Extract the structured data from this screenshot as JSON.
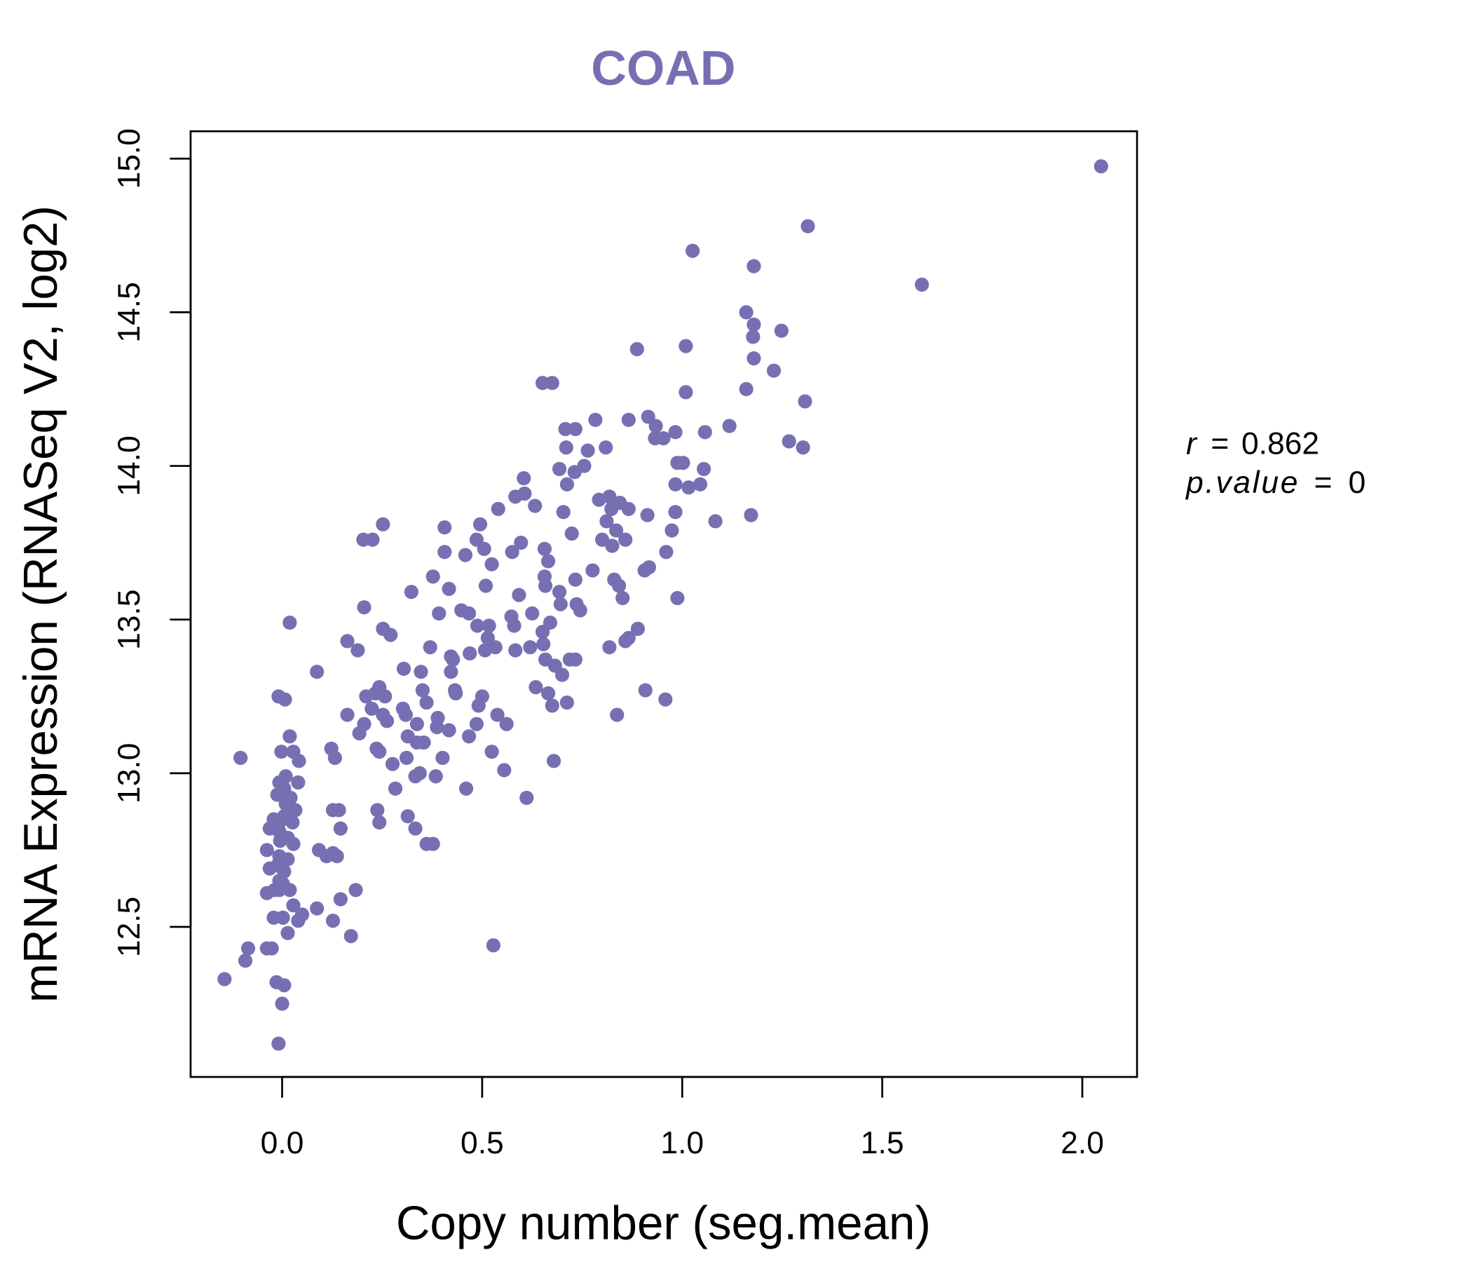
{
  "chart_data": {
    "type": "scatter",
    "title": "COAD",
    "xlabel": "Copy number (seg.mean)",
    "ylabel": "mRNA Expression (RNASeq V2, log2)",
    "xlim": [
      -0.23,
      2.14
    ],
    "ylim": [
      12.08,
      15.09
    ],
    "xticks": [
      "0.0",
      "0.5",
      "1.0",
      "1.5",
      "2.0"
    ],
    "xtick_values": [
      0,
      0.5,
      1.0,
      1.5,
      2.0
    ],
    "yticks": [
      "12.5",
      "13.0",
      "13.5",
      "14.0",
      "14.5",
      "15.0"
    ],
    "ytick_values": [
      12.5,
      13.0,
      13.5,
      14.0,
      14.5,
      15.0
    ],
    "grid": false,
    "colors": {
      "point": "#7670b3",
      "title": "#7670b3",
      "axis": "#000000"
    },
    "annotation": {
      "r_label": "r",
      "r_value": "0.862",
      "p_label": "p.value",
      "p_value": "0",
      "eq": "="
    },
    "points": [
      [
        2.047,
        14.975
      ],
      [
        1.314,
        14.78
      ],
      [
        1.026,
        14.7
      ],
      [
        1.179,
        14.65
      ],
      [
        1.599,
        14.59
      ],
      [
        1.16,
        14.5
      ],
      [
        1.179,
        14.46
      ],
      [
        1.177,
        14.42
      ],
      [
        1.248,
        14.44
      ],
      [
        1.009,
        14.39
      ],
      [
        0.887,
        14.38
      ],
      [
        1.179,
        14.35
      ],
      [
        1.229,
        14.31
      ],
      [
        0.651,
        14.27
      ],
      [
        0.675,
        14.27
      ],
      [
        1.009,
        14.24
      ],
      [
        1.16,
        14.25
      ],
      [
        1.307,
        14.21
      ],
      [
        0.783,
        14.15
      ],
      [
        0.866,
        14.15
      ],
      [
        0.915,
        14.16
      ],
      [
        0.934,
        14.13
      ],
      [
        1.118,
        14.13
      ],
      [
        0.708,
        14.12
      ],
      [
        0.733,
        14.12
      ],
      [
        0.983,
        14.11
      ],
      [
        1.057,
        14.11
      ],
      [
        0.932,
        14.09
      ],
      [
        0.953,
        14.09
      ],
      [
        1.267,
        14.08
      ],
      [
        1.302,
        14.06
      ],
      [
        0.71,
        14.06
      ],
      [
        0.764,
        14.05
      ],
      [
        0.809,
        14.06
      ],
      [
        0.988,
        14.01
      ],
      [
        1.002,
        14.01
      ],
      [
        1.054,
        13.99
      ],
      [
        0.693,
        13.99
      ],
      [
        0.731,
        13.98
      ],
      [
        0.755,
        14.0
      ],
      [
        0.604,
        13.96
      ],
      [
        0.712,
        13.94
      ],
      [
        0.983,
        13.94
      ],
      [
        1.016,
        13.93
      ],
      [
        1.045,
        13.94
      ],
      [
        0.583,
        13.9
      ],
      [
        0.606,
        13.91
      ],
      [
        0.632,
        13.87
      ],
      [
        0.54,
        13.86
      ],
      [
        0.792,
        13.89
      ],
      [
        0.818,
        13.9
      ],
      [
        0.844,
        13.88
      ],
      [
        0.866,
        13.86
      ],
      [
        0.823,
        13.86
      ],
      [
        0.703,
        13.85
      ],
      [
        0.913,
        13.84
      ],
      [
        0.983,
        13.85
      ],
      [
        1.172,
        13.84
      ],
      [
        1.083,
        13.82
      ],
      [
        0.811,
        13.82
      ],
      [
        0.252,
        13.81
      ],
      [
        0.495,
        13.81
      ],
      [
        0.406,
        13.8
      ],
      [
        0.835,
        13.79
      ],
      [
        0.724,
        13.78
      ],
      [
        0.974,
        13.79
      ],
      [
        0.203,
        13.76
      ],
      [
        0.226,
        13.76
      ],
      [
        0.486,
        13.76
      ],
      [
        0.8,
        13.76
      ],
      [
        0.825,
        13.74
      ],
      [
        0.858,
        13.76
      ],
      [
        0.597,
        13.75
      ],
      [
        0.505,
        13.73
      ],
      [
        0.656,
        13.73
      ],
      [
        0.406,
        13.72
      ],
      [
        0.458,
        13.71
      ],
      [
        0.575,
        13.72
      ],
      [
        0.96,
        13.72
      ],
      [
        0.524,
        13.68
      ],
      [
        0.665,
        13.69
      ],
      [
        0.906,
        13.66
      ],
      [
        0.917,
        13.67
      ],
      [
        0.776,
        13.66
      ],
      [
        0.377,
        13.64
      ],
      [
        0.656,
        13.64
      ],
      [
        0.733,
        13.63
      ],
      [
        0.83,
        13.63
      ],
      [
        0.417,
        13.6
      ],
      [
        0.509,
        13.61
      ],
      [
        0.658,
        13.61
      ],
      [
        0.842,
        13.61
      ],
      [
        0.323,
        13.59
      ],
      [
        0.693,
        13.59
      ],
      [
        0.592,
        13.58
      ],
      [
        0.988,
        13.57
      ],
      [
        0.851,
        13.57
      ],
      [
        0.205,
        13.54
      ],
      [
        0.448,
        13.53
      ],
      [
        0.467,
        13.52
      ],
      [
        0.736,
        13.55
      ],
      [
        0.696,
        13.55
      ],
      [
        0.745,
        13.53
      ],
      [
        0.392,
        13.52
      ],
      [
        0.625,
        13.52
      ],
      [
        0.573,
        13.51
      ],
      [
        0.019,
        13.49
      ],
      [
        0.517,
        13.48
      ],
      [
        0.488,
        13.48
      ],
      [
        0.58,
        13.48
      ],
      [
        0.67,
        13.49
      ],
      [
        0.651,
        13.46
      ],
      [
        0.252,
        13.47
      ],
      [
        0.271,
        13.45
      ],
      [
        0.889,
        13.47
      ],
      [
        0.866,
        13.44
      ],
      [
        0.858,
        13.43
      ],
      [
        0.514,
        13.44
      ],
      [
        0.163,
        13.43
      ],
      [
        0.818,
        13.41
      ],
      [
        0.653,
        13.42
      ],
      [
        0.189,
        13.4
      ],
      [
        0.37,
        13.41
      ],
      [
        0.507,
        13.4
      ],
      [
        0.533,
        13.41
      ],
      [
        0.583,
        13.4
      ],
      [
        0.62,
        13.41
      ],
      [
        0.469,
        13.39
      ],
      [
        0.427,
        13.37
      ],
      [
        0.422,
        13.38
      ],
      [
        0.658,
        13.37
      ],
      [
        0.733,
        13.37
      ],
      [
        0.719,
        13.37
      ],
      [
        0.682,
        13.35
      ],
      [
        0.087,
        13.33
      ],
      [
        0.304,
        13.34
      ],
      [
        0.347,
        13.33
      ],
      [
        0.422,
        13.33
      ],
      [
        0.7,
        13.32
      ],
      [
        0.243,
        13.28
      ],
      [
        0.257,
        13.25
      ],
      [
        0.233,
        13.26
      ],
      [
        0.351,
        13.27
      ],
      [
        0.432,
        13.27
      ],
      [
        0.434,
        13.26
      ],
      [
        0.634,
        13.28
      ],
      [
        0.908,
        13.27
      ],
      [
        0.21,
        13.25
      ],
      [
        -0.009,
        13.25
      ],
      [
        0.007,
        13.24
      ],
      [
        0.665,
        13.26
      ],
      [
        0.5,
        13.25
      ],
      [
        0.958,
        13.24
      ],
      [
        0.361,
        13.23
      ],
      [
        0.712,
        13.23
      ],
      [
        0.675,
        13.22
      ],
      [
        0.491,
        13.22
      ],
      [
        0.224,
        13.21
      ],
      [
        0.302,
        13.21
      ],
      [
        0.309,
        13.19
      ],
      [
        0.837,
        13.19
      ],
      [
        0.163,
        13.19
      ],
      [
        0.252,
        13.19
      ],
      [
        0.538,
        13.19
      ],
      [
        0.262,
        13.17
      ],
      [
        0.389,
        13.18
      ],
      [
        0.205,
        13.16
      ],
      [
        0.337,
        13.16
      ],
      [
        0.486,
        13.16
      ],
      [
        0.561,
        13.16
      ],
      [
        0.193,
        13.13
      ],
      [
        0.387,
        13.15
      ],
      [
        0.417,
        13.14
      ],
      [
        0.314,
        13.12
      ],
      [
        0.019,
        13.12
      ],
      [
        0.467,
        13.12
      ],
      [
        0.337,
        13.1
      ],
      [
        0.354,
        13.1
      ],
      [
        0.236,
        13.08
      ],
      [
        0.123,
        13.08
      ],
      [
        0.243,
        13.07
      ],
      [
        0.028,
        13.07
      ],
      [
        -0.002,
        13.07
      ],
      [
        0.524,
        13.07
      ],
      [
        -0.104,
        13.05
      ],
      [
        0.132,
        13.05
      ],
      [
        0.311,
        13.05
      ],
      [
        0.401,
        13.05
      ],
      [
        0.042,
        13.04
      ],
      [
        0.679,
        13.04
      ],
      [
        0.276,
        13.03
      ],
      [
        0.555,
        13.01
      ],
      [
        0.344,
        13.0
      ],
      [
        0.333,
        12.99
      ],
      [
        0.009,
        12.99
      ],
      [
        0.384,
        12.99
      ],
      [
        0.04,
        12.97
      ],
      [
        -0.007,
        12.97
      ],
      [
        0.0,
        12.97
      ],
      [
        0.283,
        12.95
      ],
      [
        0.46,
        12.95
      ],
      [
        0.005,
        12.95
      ],
      [
        -0.012,
        12.93
      ],
      [
        0.021,
        12.92
      ],
      [
        0.611,
        12.92
      ],
      [
        0.009,
        12.9
      ],
      [
        0.127,
        12.88
      ],
      [
        0.142,
        12.88
      ],
      [
        0.033,
        12.88
      ],
      [
        0.238,
        12.88
      ],
      [
        0.314,
        12.86
      ],
      [
        -0.021,
        12.85
      ],
      [
        0.005,
        12.86
      ],
      [
        0.243,
        12.84
      ],
      [
        -0.007,
        12.84
      ],
      [
        0.026,
        12.84
      ],
      [
        -0.031,
        12.82
      ],
      [
        0.146,
        12.82
      ],
      [
        0.333,
        12.82
      ],
      [
        -0.007,
        12.81
      ],
      [
        0.014,
        12.79
      ],
      [
        0.028,
        12.77
      ],
      [
        0.361,
        12.77
      ],
      [
        0.377,
        12.77
      ],
      [
        -0.005,
        12.78
      ],
      [
        -0.038,
        12.75
      ],
      [
        0.092,
        12.75
      ],
      [
        0.127,
        12.74
      ],
      [
        -0.007,
        12.73
      ],
      [
        0.111,
        12.73
      ],
      [
        0.137,
        12.73
      ],
      [
        0.014,
        12.72
      ],
      [
        -0.012,
        12.7
      ],
      [
        -0.031,
        12.69
      ],
      [
        0.005,
        12.68
      ],
      [
        -0.007,
        12.65
      ],
      [
        0.002,
        12.64
      ],
      [
        0.184,
        12.62
      ],
      [
        0.019,
        12.62
      ],
      [
        -0.007,
        12.62
      ],
      [
        -0.038,
        12.61
      ],
      [
        -0.019,
        12.62
      ],
      [
        0.146,
        12.59
      ],
      [
        0.087,
        12.56
      ],
      [
        0.028,
        12.57
      ],
      [
        0.05,
        12.54
      ],
      [
        -0.021,
        12.53
      ],
      [
        0.002,
        12.53
      ],
      [
        0.127,
        12.52
      ],
      [
        0.04,
        12.52
      ],
      [
        0.014,
        12.48
      ],
      [
        0.172,
        12.47
      ],
      [
        -0.085,
        12.43
      ],
      [
        -0.038,
        12.43
      ],
      [
        -0.026,
        12.43
      ],
      [
        0.528,
        12.44
      ],
      [
        -0.092,
        12.39
      ],
      [
        -0.144,
        12.33
      ],
      [
        -0.014,
        12.32
      ],
      [
        0.005,
        12.31
      ],
      [
        0.0,
        12.25
      ],
      [
        -0.009,
        12.12
      ]
    ]
  }
}
